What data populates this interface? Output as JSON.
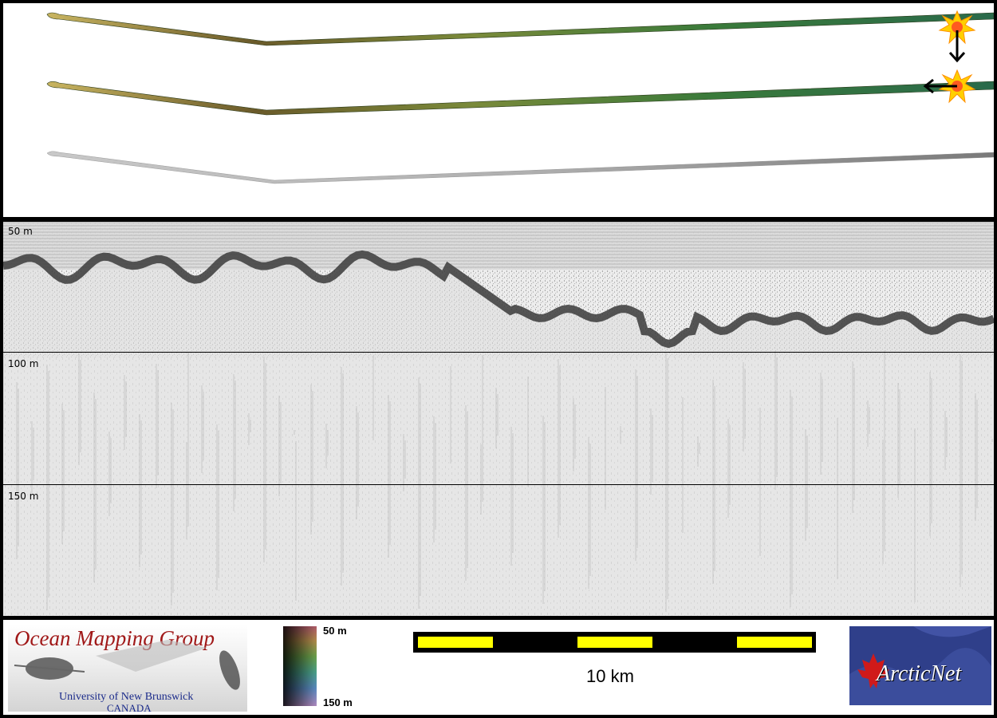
{
  "profile": {
    "depth_labels": [
      "50 m",
      "100 m",
      "150 m"
    ]
  },
  "legend": {
    "color_scale": {
      "top_label": "50 m",
      "bottom_label": "150 m"
    },
    "scale_bar": {
      "label": "10 km",
      "segments": 5
    }
  },
  "logos": {
    "ocean_mapping_group": {
      "title": "Ocean Mapping Group",
      "university": "University of New Brunswick",
      "country": "CANADA"
    },
    "arcticnet": {
      "name": "ArcticNet"
    }
  },
  "track_overview": {
    "strips": [
      "bathymetry-colored",
      "bathymetry-colored",
      "backscatter-grey"
    ],
    "markers": [
      {
        "icon": "sun-burst-icon",
        "arrow": "arrow-down-icon"
      },
      {
        "icon": "sun-burst-icon",
        "arrow": "arrow-left-icon"
      }
    ]
  },
  "colors": {
    "scale_yellow": "#ffff00",
    "omg_red": "#a01818",
    "omg_blue": "#1a2a8a",
    "arcticnet_blue": "#2f3f8a",
    "marker_orange": "#ffb000",
    "marker_red": "#e02020"
  }
}
